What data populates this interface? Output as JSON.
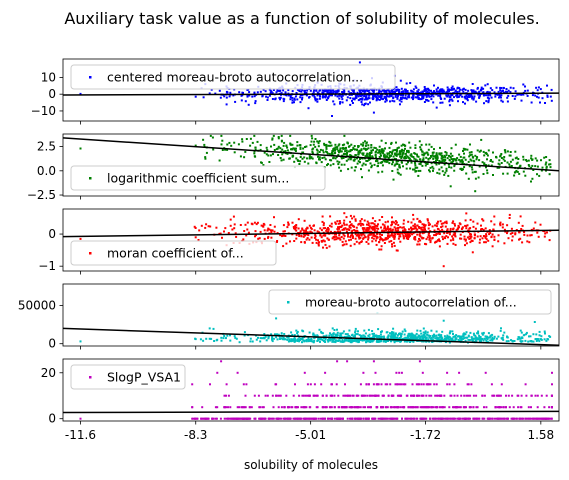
{
  "title": "Auxiliary task value as a function of solubility of molecules.",
  "chart_data": {
    "type": "scatter",
    "title": "Auxiliary task value as a function of solubility of molecules.",
    "xlabel": "solubility of molecules",
    "xlim": [
      -12.1,
      2.1
    ],
    "x_ticks": [
      -11.6,
      -8.3,
      -5.01,
      -1.72,
      1.58
    ],
    "x_tick_labels": [
      "-11.6",
      "-8.3",
      "-5.01",
      "-1.72",
      "1.58"
    ],
    "grid": false,
    "panels": [
      {
        "series_name": "centered moreau-broto autocorrelation...",
        "color": "#0000ff",
        "legend_loc": "upper-left",
        "ylim": [
          -16,
          21
        ],
        "y_ticks": [
          -10,
          0,
          10
        ],
        "y_tick_labels": [
          "−10",
          "0",
          "10"
        ],
        "trend_line": {
          "x": [
            -12.1,
            2.1
          ],
          "y": [
            -0.5,
            0.6
          ]
        },
        "cloud": {
          "x_center": -2.8,
          "x_spread": 2.2,
          "y_center": 0.0,
          "y_spread": 2.5,
          "y_min": -13,
          "y_max": 19,
          "n": 900
        },
        "points": [
          {
            "x": -11.6,
            "y": 0.2
          },
          {
            "x": -8.3,
            "y": -1.5
          },
          {
            "x": -7.9,
            "y": 0.5
          },
          {
            "x": -4.4,
            "y": -13.0
          },
          {
            "x": -3.6,
            "y": 19.0
          },
          {
            "x": -3.2,
            "y": -11.0
          },
          {
            "x": -2.6,
            "y": 11.0
          },
          {
            "x": -1.4,
            "y": -8.0
          },
          {
            "x": 0.6,
            "y": 1.0
          },
          {
            "x": 1.2,
            "y": -1.0
          }
        ]
      },
      {
        "series_name": "logarithmic coefficient sum...",
        "color": "#008000",
        "legend_loc": "lower-left",
        "ylim": [
          -2.6,
          3.8
        ],
        "y_ticks": [
          -2.5,
          0.0,
          2.5
        ],
        "y_tick_labels": [
          "−2.5",
          "0.0",
          "2.5"
        ],
        "trend_line": {
          "x": [
            -12.1,
            2.1
          ],
          "y": [
            3.4,
            0.0
          ]
        },
        "cloud": {
          "x_center": -2.8,
          "x_spread": 2.2,
          "y_center": 1.5,
          "y_spread": 0.7,
          "y_min": -2.2,
          "y_max": 3.6,
          "n": 900,
          "y_slope": -0.22
        },
        "points": [
          {
            "x": -11.6,
            "y": 2.3
          },
          {
            "x": -8.3,
            "y": 2.6
          },
          {
            "x": -7.8,
            "y": 2.2
          },
          {
            "x": -7.2,
            "y": 2.9
          },
          {
            "x": -1.0,
            "y": -1.6
          },
          {
            "x": -0.3,
            "y": -2.1
          },
          {
            "x": 0.5,
            "y": -0.3
          },
          {
            "x": 1.3,
            "y": 0.3
          }
        ]
      },
      {
        "series_name": "moran coefficient of...",
        "color": "#ff0000",
        "legend_loc": "lower-left",
        "ylim": [
          -1.15,
          0.78
        ],
        "y_ticks": [
          -1,
          0
        ],
        "y_tick_labels": [
          "−1",
          "0"
        ],
        "trend_line": {
          "x": [
            -12.1,
            2.1
          ],
          "y": [
            -0.08,
            0.12
          ]
        },
        "cloud": {
          "x_center": -2.8,
          "x_spread": 2.2,
          "y_center": 0.05,
          "y_spread": 0.2,
          "y_min": -0.9,
          "y_max": 0.65,
          "n": 900
        },
        "points": [
          {
            "x": -11.6,
            "y": -0.15
          },
          {
            "x": -8.3,
            "y": -0.1
          },
          {
            "x": -7.3,
            "y": 0.45
          },
          {
            "x": -1.2,
            "y": -1.0
          },
          {
            "x": 1.0,
            "y": 0.55
          }
        ]
      },
      {
        "series_name": "moreau-broto autocorrelation of...",
        "color": "#00bfbf",
        "legend_loc": "upper-right",
        "ylim": [
          -3000,
          78000
        ],
        "y_ticks": [
          0,
          50000
        ],
        "y_tick_labels": [
          "0",
          "50000"
        ],
        "trend_line": {
          "x": [
            -12.1,
            2.1
          ],
          "y": [
            20000,
            -2000
          ]
        },
        "cloud": {
          "x_center": -2.8,
          "x_spread": 2.2,
          "y_center": 9000,
          "y_spread": 5500,
          "y_min": 0,
          "y_max": 45000,
          "n": 900,
          "positive_skew": true
        },
        "points": [
          {
            "x": -11.6,
            "y": 3000
          },
          {
            "x": -8.3,
            "y": 6000
          },
          {
            "x": -7.9,
            "y": 20000
          },
          {
            "x": -6.0,
            "y": 33000
          },
          {
            "x": -3.1,
            "y": 40000
          },
          {
            "x": -1.2,
            "y": 30000
          }
        ]
      },
      {
        "series_name": "SlogP_VSA1",
        "color": "#bf00bf",
        "legend_loc": "upper-left",
        "ylim": [
          -1,
          26
        ],
        "y_ticks": [
          0,
          20
        ],
        "y_tick_labels": [
          "0",
          "20"
        ],
        "trend_line": {
          "x": [
            -12.1,
            2.1
          ],
          "y": [
            2.7,
            3.2
          ]
        },
        "levels": [
          0,
          5,
          10,
          15,
          20,
          25
        ],
        "level_counts": [
          400,
          220,
          150,
          60,
          14,
          4
        ],
        "cloud": {
          "x_center": -2.8,
          "x_spread": 2.3,
          "n": 0
        },
        "points": [
          {
            "x": -11.6,
            "y": 0
          },
          {
            "x": -3.2,
            "y": 25
          }
        ]
      }
    ]
  }
}
